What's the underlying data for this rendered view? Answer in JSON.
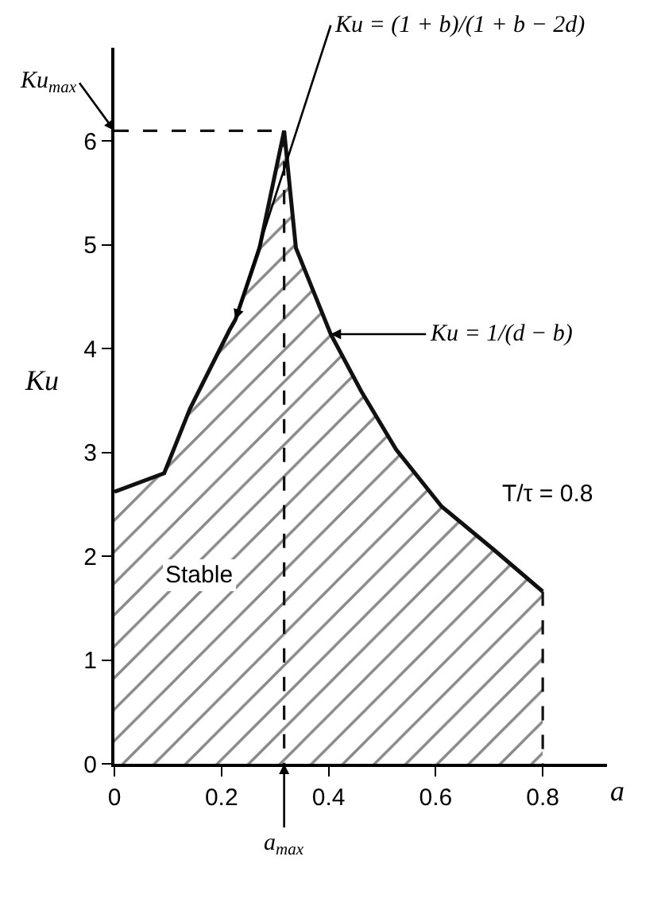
{
  "chart_data": {
    "type": "area",
    "xlabel": "a",
    "ylabel": "Ku",
    "xlim": [
      0,
      0.92
    ],
    "ylim": [
      0,
      6.9
    ],
    "xticks": [
      0,
      0.2,
      0.4,
      0.6,
      0.8
    ],
    "yticks": [
      0,
      1,
      2,
      3,
      4,
      5,
      6
    ],
    "marker": "none",
    "series": [
      {
        "color": "#111111",
        "x": [
          0,
          0.093,
          0.141,
          0.215,
          0.226,
          0.271,
          0.317,
          0.339,
          0.404,
          0.461,
          0.526,
          0.611,
          0.707,
          0.8
        ],
        "values": [
          2.62,
          2.8,
          3.42,
          4.18,
          4.28,
          4.97,
          6.1,
          4.97,
          4.14,
          3.59,
          3.03,
          2.48,
          2.07,
          1.66
        ]
      },
      {
        "type": "line",
        "line_style": "dashed",
        "color": "#111111",
        "x": [
          0,
          0.317,
          0.317
        ],
        "values": [
          6.1,
          6.1,
          0
        ]
      },
      {
        "type": "line",
        "line_style": "dashed",
        "color": "#111111",
        "x": [
          0.8,
          0.8
        ],
        "values": [
          1.66,
          0
        ]
      }
    ],
    "annotations": [
      {
        "text": "Ku = (1 + b)/(1 + b − 2d)",
        "x": 0.226,
        "y": 4.28
      },
      {
        "text": "Ku = 1/(d − b)",
        "x": 0.404,
        "y": 4.14
      },
      {
        "text": "Ku$_{max}$",
        "x": 0,
        "y": 6.1
      },
      {
        "text": "a$_{max}$",
        "x": 0.317,
        "y": 0
      },
      "T/τ = 0.8",
      "Stable"
    ]
  }
}
